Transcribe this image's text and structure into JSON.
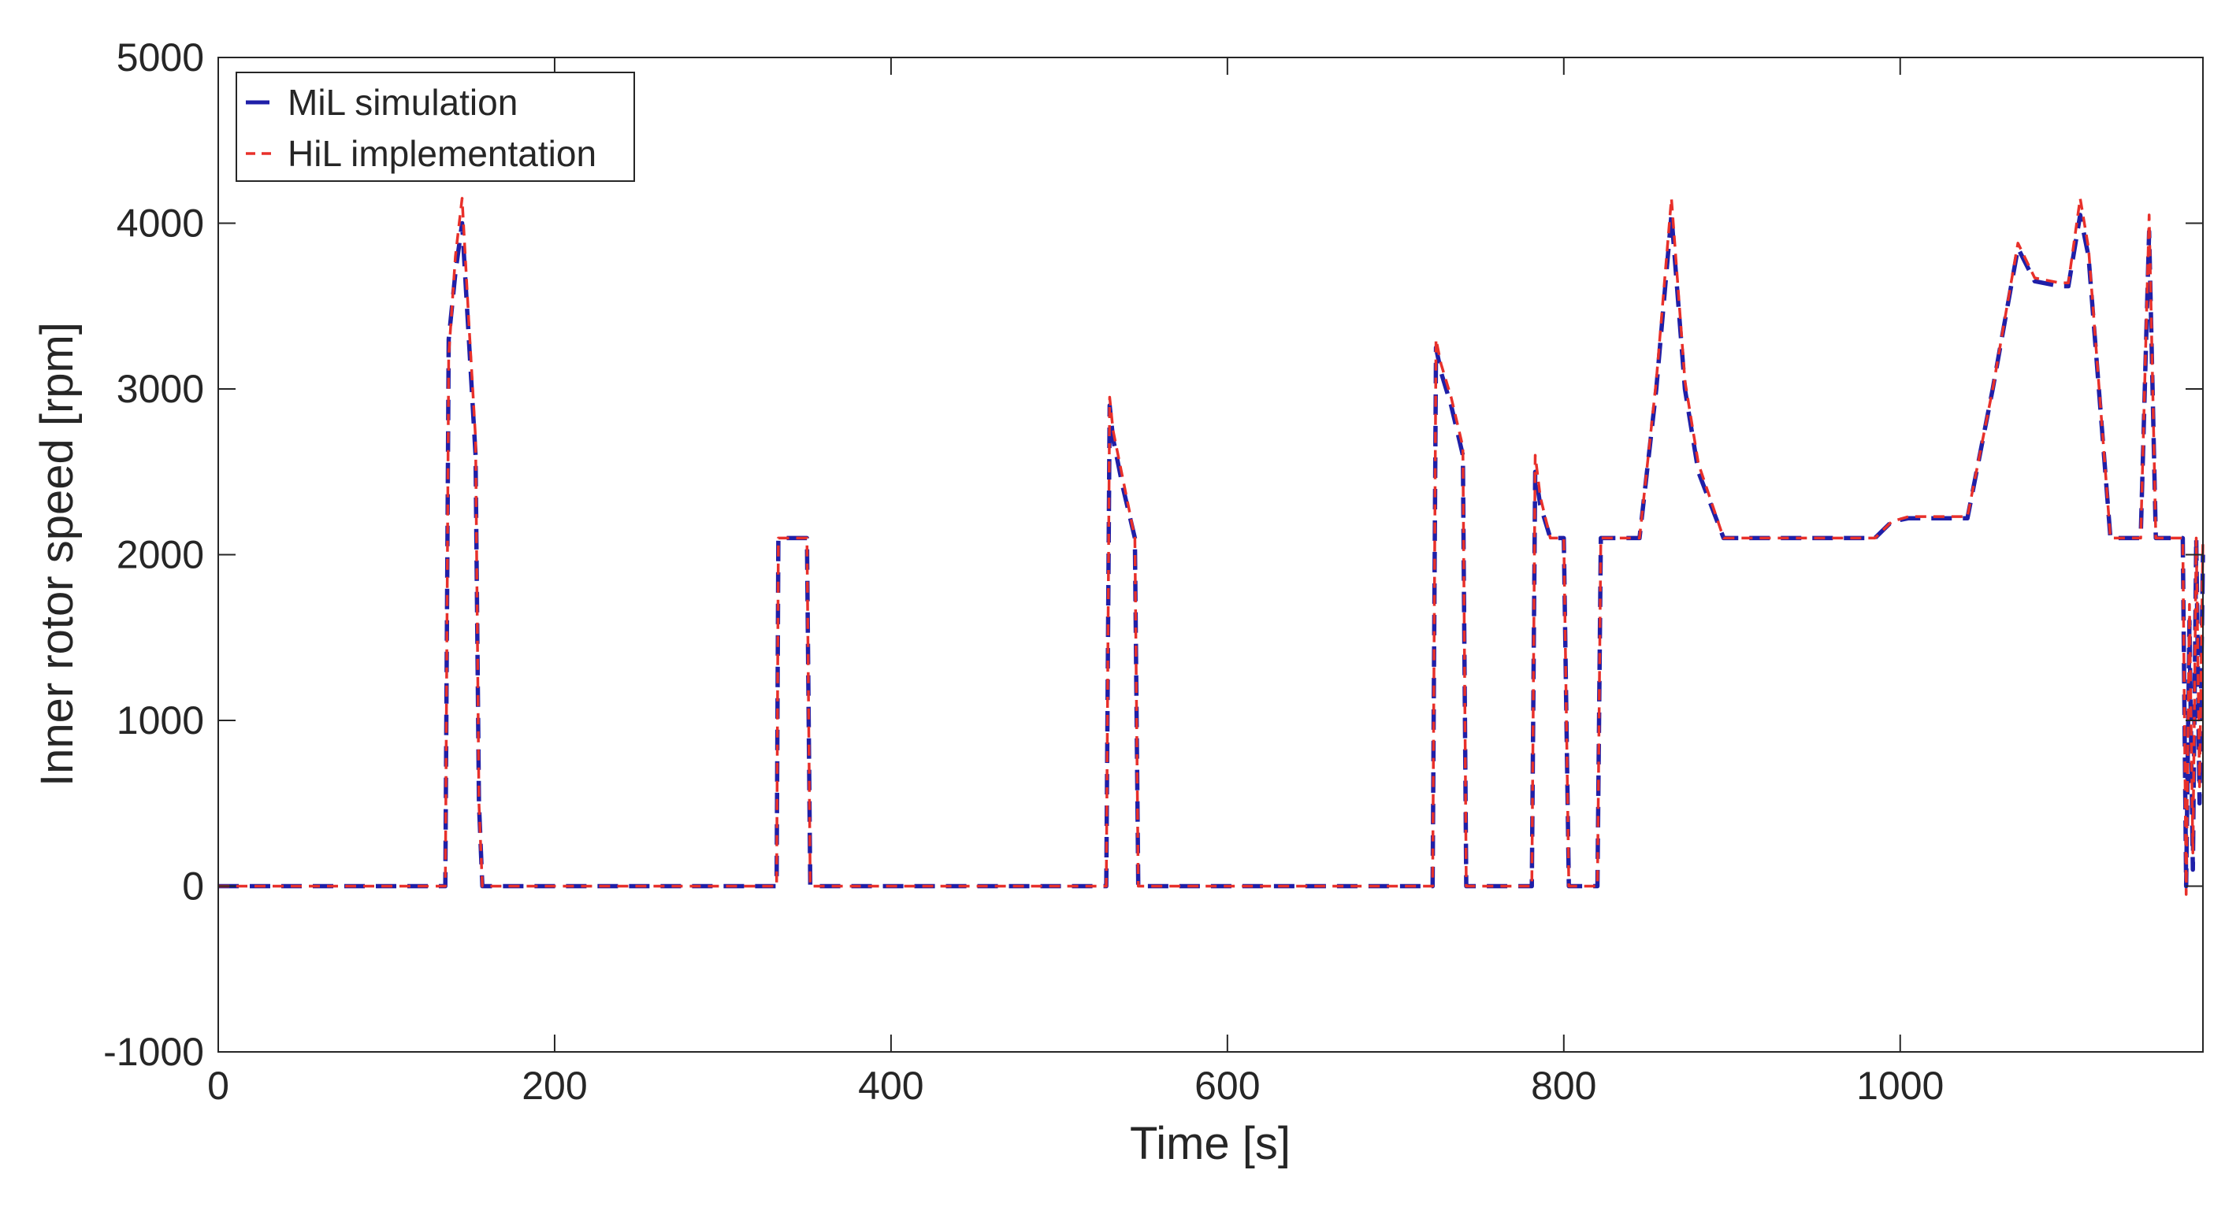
{
  "chart_data": {
    "type": "line",
    "title": "",
    "xlabel": "Time [s]",
    "ylabel": "Inner rotor speed [rpm]",
    "xlim": [
      0,
      1180
    ],
    "ylim": [
      -1000,
      5000
    ],
    "xticks": [
      0,
      200,
      400,
      600,
      800,
      1000
    ],
    "yticks": [
      -1000,
      0,
      1000,
      2000,
      3000,
      4000,
      5000
    ],
    "grid": false,
    "legend_position": "top-left",
    "colors": {
      "mil": "#1f1fa8",
      "hil": "#e8302a",
      "axis": "#262626",
      "background": "#ffffff"
    },
    "series": [
      {
        "name": "MiL simulation",
        "color": "#1f1fa8",
        "dash": "long",
        "x": [
          0,
          135,
          137,
          141,
          145,
          149,
          153,
          155,
          157,
          332,
          333,
          336,
          349,
          350,
          352,
          528,
          530,
          532,
          538,
          545,
          547,
          549,
          722,
          724,
          727,
          733,
          740,
          742,
          745,
          781,
          783,
          786,
          792,
          800,
          803,
          820,
          822,
          825,
          845,
          855,
          864,
          872,
          880,
          895,
          985,
          995,
          1005,
          1040,
          1055,
          1070,
          1080,
          1095,
          1100,
          1107,
          1112,
          1125,
          1135,
          1143,
          1148,
          1152,
          1158,
          1168,
          1170,
          1172,
          1174,
          1176,
          1178,
          1180
        ],
        "y": [
          0,
          0,
          3300,
          3700,
          4000,
          3300,
          2600,
          500,
          0,
          0,
          2100,
          2100,
          2100,
          2100,
          0,
          0,
          2900,
          2700,
          2400,
          2100,
          0,
          0,
          0,
          3250,
          3100,
          2900,
          2600,
          0,
          0,
          0,
          2500,
          2300,
          2100,
          2100,
          0,
          0,
          2100,
          2100,
          2100,
          3000,
          4050,
          3000,
          2500,
          2100,
          2100,
          2200,
          2220,
          2220,
          3000,
          3850,
          3650,
          3620,
          3620,
          4050,
          3800,
          2100,
          2100,
          2100,
          3950,
          2100,
          2100,
          2100,
          0,
          1600,
          100,
          2100,
          500,
          2000
        ]
      },
      {
        "name": "HiL implementation",
        "color": "#e8302a",
        "dash": "short",
        "x": [
          0,
          135,
          137,
          141,
          145,
          149,
          153,
          155,
          157,
          332,
          333,
          336,
          349,
          350,
          352,
          528,
          530,
          532,
          538,
          545,
          547,
          549,
          722,
          724,
          727,
          733,
          740,
          742,
          745,
          781,
          783,
          786,
          792,
          800,
          803,
          820,
          822,
          825,
          845,
          855,
          864,
          872,
          880,
          895,
          985,
          995,
          1005,
          1040,
          1055,
          1070,
          1080,
          1095,
          1100,
          1107,
          1112,
          1125,
          1135,
          1143,
          1148,
          1152,
          1158,
          1168,
          1170,
          1172,
          1174,
          1176,
          1178,
          1180
        ],
        "y": [
          0,
          0,
          3200,
          3800,
          4150,
          3400,
          2700,
          500,
          0,
          0,
          2100,
          2100,
          2100,
          2100,
          0,
          0,
          2950,
          2750,
          2450,
          2100,
          0,
          0,
          0,
          3300,
          3150,
          2950,
          2650,
          0,
          0,
          0,
          2600,
          2350,
          2100,
          2100,
          0,
          0,
          2100,
          2100,
          2100,
          3050,
          4150,
          3050,
          2550,
          2100,
          2100,
          2200,
          2230,
          2230,
          3000,
          3880,
          3670,
          3640,
          3640,
          4150,
          3850,
          2100,
          2100,
          2100,
          4050,
          2100,
          2100,
          2100,
          -50,
          1700,
          200,
          2100,
          600,
          2100
        ]
      }
    ]
  }
}
